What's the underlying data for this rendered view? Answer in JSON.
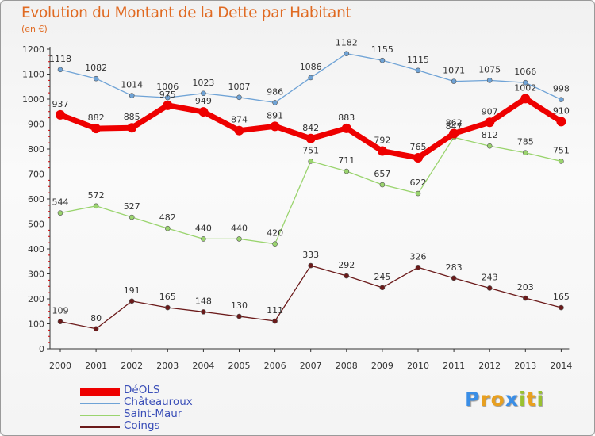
{
  "title": "Evolution du Montant de la Dette par Habitant",
  "subtitle": "(en €)",
  "brand": {
    "letters": [
      "P",
      "r",
      "o",
      "x",
      "i",
      "t",
      "i"
    ],
    "colors": [
      "#3a8ee6",
      "#e8a020",
      "#e8a020",
      "#3a8ee6",
      "#9ac130",
      "#e8a020",
      "#9ac130"
    ]
  },
  "chart_data": {
    "type": "line",
    "x": [
      "2000",
      "2001",
      "2002",
      "2003",
      "2004",
      "2005",
      "2006",
      "2007",
      "2008",
      "2009",
      "2010",
      "2011",
      "2012",
      "2013",
      "2014"
    ],
    "ylim": [
      0,
      1200
    ],
    "yticks": [
      0,
      100,
      200,
      300,
      400,
      500,
      600,
      700,
      800,
      900,
      1000,
      1100,
      1200
    ],
    "grid": false,
    "legend_position": "bottom-left",
    "series": [
      {
        "name": "DéOLS",
        "color": "#ee0000",
        "values": [
          937,
          882,
          885,
          975,
          949,
          874,
          891,
          842,
          883,
          792,
          765,
          862,
          907,
          1002,
          910
        ]
      },
      {
        "name": "Châteauroux",
        "color": "#6fa3d6",
        "values": [
          1118,
          1082,
          1014,
          1006,
          1023,
          1007,
          986,
          1086,
          1182,
          1155,
          1115,
          1071,
          1075,
          1066,
          998
        ]
      },
      {
        "name": "Saint-Maur",
        "color": "#9ad46e",
        "values": [
          544,
          572,
          527,
          482,
          440,
          440,
          420,
          751,
          711,
          657,
          622,
          847,
          812,
          785,
          751
        ]
      },
      {
        "name": "Coings",
        "color": "#6b1a1a",
        "values": [
          109,
          80,
          191,
          165,
          148,
          130,
          111,
          333,
          292,
          245,
          326,
          283,
          243,
          203,
          165
        ]
      }
    ]
  }
}
